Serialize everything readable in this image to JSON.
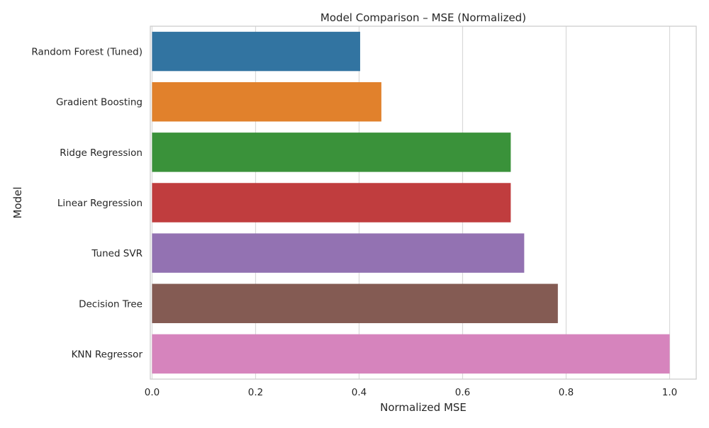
{
  "chart_data": {
    "type": "bar",
    "orientation": "horizontal",
    "title": "Model Comparison – MSE (Normalized)",
    "xlabel": "Normalized MSE",
    "ylabel": "Model",
    "xlim": [
      0,
      1.05
    ],
    "xticks": [
      0.0,
      0.2,
      0.4,
      0.6,
      0.8,
      1.0
    ],
    "xtick_labels": [
      "0.0",
      "0.2",
      "0.4",
      "0.6",
      "0.8",
      "1.0"
    ],
    "grid": true,
    "categories": [
      "Random Forest (Tuned)",
      "Gradient Boosting",
      "Ridge Regression",
      "Linear Regression",
      "Tuned SVR",
      "Decision Tree",
      "KNN Regressor"
    ],
    "values": [
      0.402,
      0.443,
      0.693,
      0.693,
      0.719,
      0.784,
      1.0
    ],
    "colors": [
      "#3274a1",
      "#e1812c",
      "#3a923a",
      "#c03d3e",
      "#9372b2",
      "#845b53",
      "#d684bd"
    ]
  }
}
